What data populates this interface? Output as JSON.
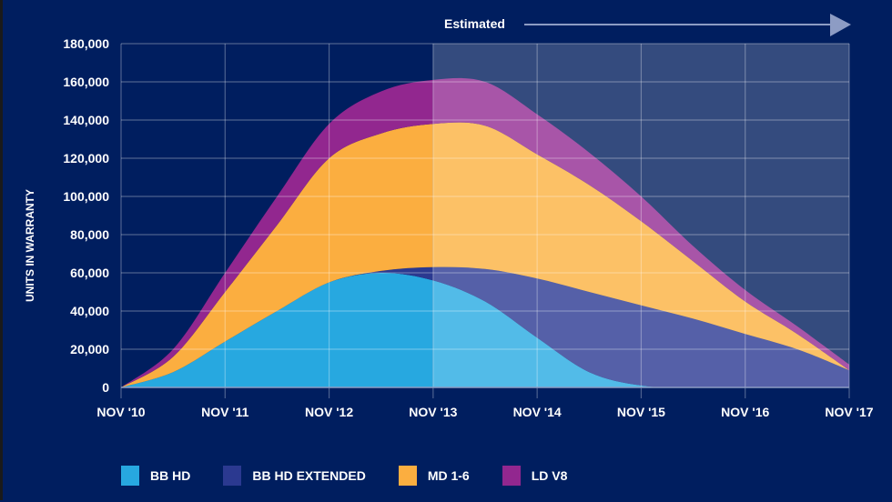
{
  "chart_data": {
    "type": "area",
    "stacked": true,
    "title": "",
    "xlabel": "",
    "ylabel": "UNITS IN WARRANTY",
    "ylim": [
      0,
      180000
    ],
    "yticks": [
      0,
      20000,
      40000,
      60000,
      80000,
      100000,
      120000,
      140000,
      160000,
      180000
    ],
    "ytick_labels": [
      "0",
      "20,000",
      "40,000",
      "60,000",
      "80,000",
      "100,000",
      "120,000",
      "140,000",
      "160,000",
      "180,000"
    ],
    "xtick_labels": [
      "NOV '10",
      "NOV '11",
      "NOV '12",
      "NOV '13",
      "NOV '14",
      "NOV '15",
      "NOV '16",
      "NOV '17"
    ],
    "x_years_from_nov10": [
      0,
      0.5,
      1,
      1.5,
      2,
      2.5,
      3,
      3.5,
      4,
      4.5,
      5,
      5.5,
      6,
      6.5,
      7
    ],
    "grid": true,
    "estimated_from_index": 3,
    "annotation": "Estimated",
    "legend_position": "bottom",
    "series": [
      {
        "name": "BB HD",
        "color": "#27a8e0",
        "estimated_color": "#52bbe8",
        "values": [
          0,
          8000,
          24000,
          40000,
          55000,
          60000,
          56000,
          45000,
          26000,
          8000,
          1000,
          0,
          0,
          0,
          0
        ]
      },
      {
        "name": "BB HD EXTENDED",
        "color": "#2b3990",
        "estimated_color": "#5560a8",
        "values": [
          0,
          0,
          0,
          0,
          0,
          1000,
          7000,
          17000,
          31000,
          42000,
          42000,
          36000,
          28000,
          20000,
          9000
        ]
      },
      {
        "name": "MD 1-6",
        "color": "#fbae40",
        "estimated_color": "#fcc166",
        "values": [
          0,
          8000,
          26000,
          45000,
          65000,
          72000,
          75000,
          75000,
          65000,
          56000,
          44000,
          30000,
          17000,
          8000,
          0
        ]
      },
      {
        "name": "LD V8",
        "color": "#92278f",
        "estimated_color": "#a855a8",
        "values": [
          0,
          4000,
          10000,
          15000,
          18000,
          22000,
          23000,
          23000,
          21000,
          17000,
          13000,
          8000,
          6000,
          4000,
          3000
        ]
      }
    ]
  }
}
